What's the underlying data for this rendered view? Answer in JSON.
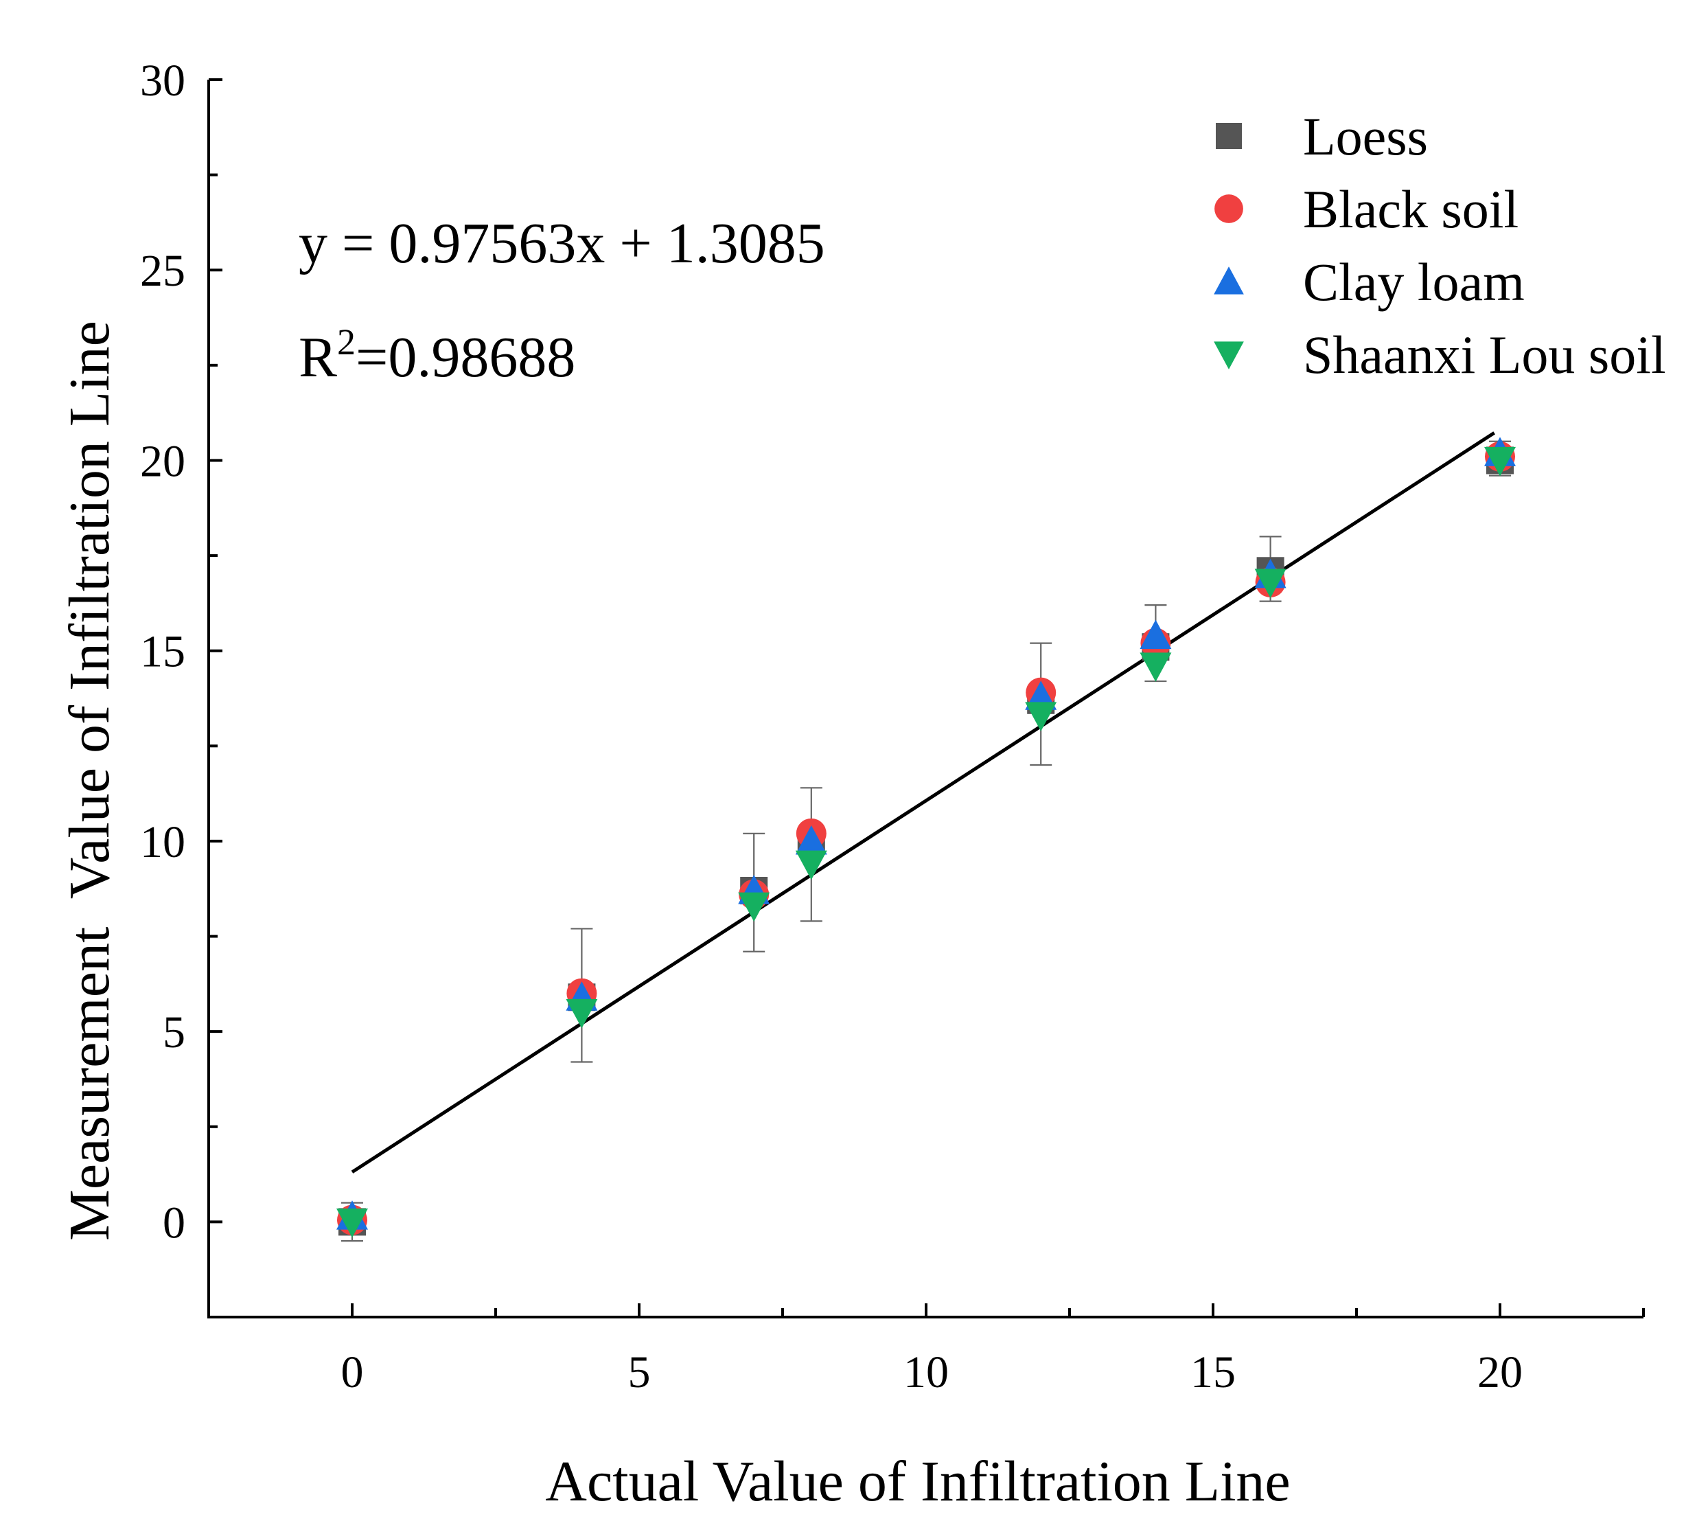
{
  "chart_data": {
    "type": "scatter",
    "title": "",
    "xlabel": "Actual Value of Infiltration Line",
    "ylabel": "Measurement  Value of Infiltration Line",
    "xlim": [
      -2.5,
      22.5
    ],
    "ylim": [
      -2.5,
      30
    ],
    "x_ticks": [
      0,
      5,
      10,
      15,
      20
    ],
    "y_ticks": [
      0,
      5,
      10,
      15,
      20,
      25,
      30
    ],
    "grid": false,
    "legend_position": "top-right",
    "series": [
      {
        "name": "Loess",
        "marker": "square",
        "color": "#555555",
        "points": [
          [
            0,
            0.0
          ],
          [
            4,
            5.9
          ],
          [
            7,
            8.7
          ],
          [
            8,
            10.0
          ],
          [
            12,
            13.7
          ],
          [
            14,
            15.1
          ],
          [
            16,
            17.1
          ],
          [
            20,
            20.0
          ]
        ]
      },
      {
        "name": "Black soil",
        "marker": "circle",
        "color": "#f04040",
        "points": [
          [
            0,
            0.05
          ],
          [
            4,
            6.0
          ],
          [
            7,
            8.6
          ],
          [
            8,
            10.2
          ],
          [
            12,
            13.9
          ],
          [
            14,
            15.2
          ],
          [
            16,
            16.8
          ],
          [
            20,
            20.1
          ]
        ]
      },
      {
        "name": "Clay loam",
        "marker": "triangle-up",
        "color": "#1a6fe0",
        "points": [
          [
            0,
            0.15
          ],
          [
            4,
            5.9
          ],
          [
            7,
            8.7
          ],
          [
            8,
            10.0
          ],
          [
            12,
            13.8
          ],
          [
            14,
            15.4
          ],
          [
            16,
            17.0
          ],
          [
            20,
            20.2
          ]
        ]
      },
      {
        "name": "Shaanxi Lou soil",
        "marker": "triangle-down",
        "color": "#15b060",
        "points": [
          [
            0,
            0.0
          ],
          [
            4,
            5.5
          ],
          [
            7,
            8.3
          ],
          [
            8,
            9.4
          ],
          [
            12,
            13.3
          ],
          [
            14,
            14.6
          ],
          [
            16,
            16.8
          ],
          [
            20,
            20.0
          ]
        ]
      }
    ],
    "error_bars": [
      {
        "x": 0,
        "low": -0.5,
        "high": 0.5
      },
      {
        "x": 4,
        "low": 4.2,
        "high": 7.7
      },
      {
        "x": 7,
        "low": 7.1,
        "high": 10.2
      },
      {
        "x": 8,
        "low": 7.9,
        "high": 11.4
      },
      {
        "x": 12,
        "low": 12.0,
        "high": 15.2
      },
      {
        "x": 14,
        "low": 14.2,
        "high": 16.2
      },
      {
        "x": 16,
        "low": 16.3,
        "high": 18.0
      },
      {
        "x": 20,
        "low": 19.6,
        "high": 20.5
      }
    ],
    "fit_line": {
      "slope": 0.97563,
      "intercept": 1.3085,
      "x_range": [
        0,
        19.9
      ]
    },
    "annotations": {
      "equation": "y = 0.97563x + 1.3085",
      "r2_prefix": "R",
      "r2_sup": "2",
      "r2_value": "=0.98688"
    }
  }
}
